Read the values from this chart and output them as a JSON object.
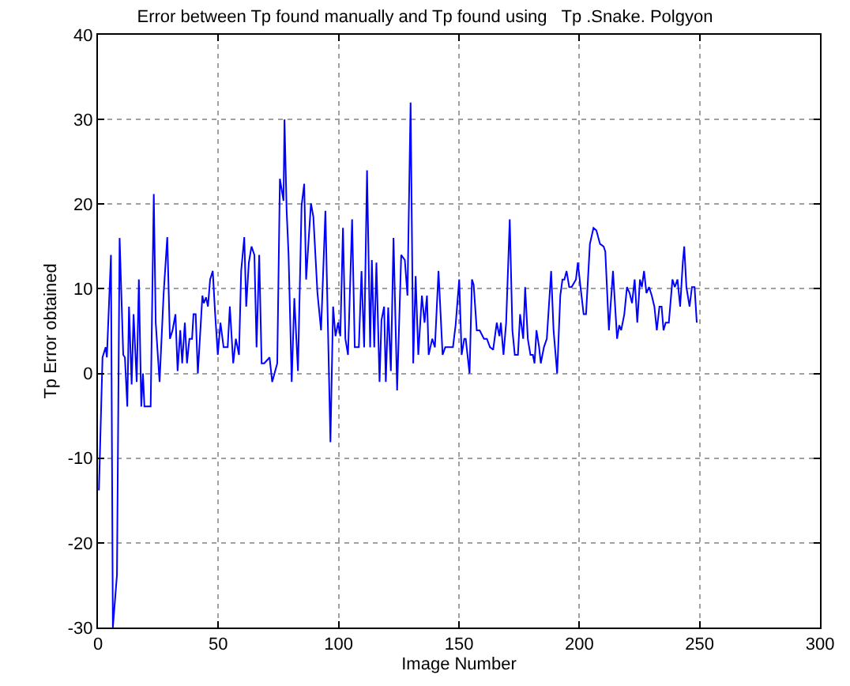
{
  "chart_data": {
    "type": "line",
    "title": "Error between Tp found manually and Tp found using   Tp .Snake. Polgyon",
    "xlabel": "Image Number",
    "ylabel": "Tp Error obtained",
    "x": [
      0.4,
      1.9,
      3.2,
      3.7,
      5.4,
      6.2,
      7.9,
      9,
      10.5,
      11.2,
      12.2,
      12.9,
      14,
      14.8,
      16.1,
      17,
      18,
      18.7,
      19.3,
      21.9,
      23.2,
      24,
      25.6,
      27.3,
      28.8,
      29.9,
      31,
      32.2,
      33.1,
      34.2,
      35,
      36.1,
      37,
      38,
      39.1,
      39.7,
      40.6,
      41.5,
      43.4,
      44,
      44.9,
      45.7,
      46.6,
      47.7,
      48.7,
      49.8,
      50.9,
      52.2,
      53.9,
      54.8,
      56.2,
      57.3,
      58.6,
      59.5,
      60.8,
      61.6,
      62.7,
      63.8,
      65,
      65.9,
      67,
      68,
      69.1,
      71.3,
      72.4,
      74.5,
      75.6,
      77.1,
      77.5,
      78.4,
      79.2,
      80.5,
      81.6,
      83.1,
      84.6,
      85.7,
      86.5,
      88.5,
      89.5,
      91.2,
      92.7,
      94.5,
      96.6,
      97.7,
      98.7,
      99.8,
      100.7,
      101.8,
      102.8,
      103.9,
      105.6,
      106.7,
      108.4,
      109.5,
      110.6,
      111.8,
      113.1,
      113.8,
      114.8,
      115.7,
      117,
      117.8,
      118.9,
      119.6,
      120.6,
      121.7,
      122.8,
      124.3,
      126,
      127.5,
      128.6,
      129.9,
      131,
      132,
      133.1,
      134.6,
      135.7,
      136.7,
      137.4,
      138.9,
      140,
      141.5,
      143.2,
      144.3,
      147.5,
      148.6,
      150.1,
      151.1,
      152.2,
      152.8,
      154.4,
      155.4,
      156.1,
      157.4,
      158.6,
      160.4,
      161.6,
      162.9,
      164.2,
      165.7,
      166.8,
      167.4,
      168.5,
      169.6,
      171.1,
      172.2,
      173.2,
      174.5,
      175.4,
      176.7,
      177.5,
      178.6,
      179.7,
      180.7,
      181.4,
      182.2,
      183.3,
      184,
      185.3,
      186.5,
      188.3,
      189.3,
      190.8,
      192.1,
      193,
      193.8,
      194.7,
      195.8,
      196.8,
      198.6,
      199.4,
      200.5,
      201.8,
      202.8,
      204.4,
      205.9,
      207.1,
      208.6,
      210.1,
      210.8,
      212.3,
      214,
      215.7,
      216.6,
      217.4,
      218.7,
      219.8,
      220.9,
      221.9,
      223,
      224.1,
      225.2,
      226,
      226.9,
      227.9,
      229,
      230.1,
      231.2,
      232.2,
      233.3,
      234.2,
      235,
      235.9,
      237.2,
      238.7,
      239.7,
      240.8,
      241.9,
      243,
      243.6,
      244.5,
      245.8,
      246.8,
      247.9,
      248.8
    ],
    "series": [
      {
        "color": "#0000ff",
        "values": [
          -13.8,
          1.9,
          3.1,
          1.9,
          14,
          -30,
          -23.8,
          16,
          2.2,
          1.9,
          -3.9,
          7.9,
          -1.3,
          7,
          -1,
          11.1,
          -3.9,
          0,
          -3.9,
          -3.9,
          21.2,
          6,
          -1,
          9.5,
          16.1,
          4.1,
          5.1,
          7,
          0.3,
          5.1,
          1.2,
          6,
          1.2,
          4.1,
          4.1,
          7,
          7,
          0,
          9.2,
          8.3,
          9,
          7.9,
          11.1,
          12.1,
          7,
          2.2,
          6,
          3.1,
          3.1,
          7.9,
          1.2,
          4.1,
          2.2,
          12.1,
          16.1,
          7.9,
          13.1,
          15,
          14,
          3.1,
          14,
          1.2,
          1.2,
          1.9,
          -1,
          1.2,
          23,
          20.4,
          30,
          19.2,
          14,
          -1,
          8.9,
          0.3,
          19.8,
          22.4,
          11.1,
          20.1,
          18.5,
          9.5,
          5.1,
          19.2,
          -8.1,
          7.9,
          4.4,
          6,
          4.4,
          17.2,
          4.1,
          2.2,
          18.2,
          3.1,
          3.1,
          12.1,
          3.1,
          24,
          3.1,
          13.4,
          3.1,
          13.1,
          -1,
          6.3,
          7.9,
          -1,
          7.8,
          0.3,
          16,
          -2,
          14,
          13.4,
          9.2,
          32,
          1.2,
          11.5,
          2.2,
          9.2,
          6,
          9.2,
          2.2,
          4.1,
          3.1,
          12.1,
          2.2,
          3.1,
          3.1,
          5.7,
          11.1,
          2.2,
          4.1,
          4.1,
          0,
          11.1,
          10.5,
          5.1,
          5.1,
          4.1,
          4.1,
          3.1,
          2.8,
          6,
          4.4,
          6,
          2.2,
          6,
          18.2,
          5.1,
          2.2,
          2.2,
          7,
          4.1,
          10.2,
          4.1,
          2.2,
          2.2,
          1.2,
          5.1,
          3.1,
          1.2,
          3.1,
          4.1,
          12.1,
          5.1,
          0,
          9.2,
          11.1,
          11.1,
          12.1,
          10.2,
          10.2,
          11.1,
          13.1,
          10.2,
          7,
          7,
          15.3,
          17.2,
          16.9,
          15.3,
          15,
          14.4,
          5.1,
          12.1,
          4.1,
          5.7,
          5.1,
          7,
          10.2,
          9.5,
          8.3,
          11.1,
          6,
          11.1,
          10.2,
          12.1,
          9.5,
          10.2,
          9.2,
          7.9,
          5.1,
          7.9,
          7.9,
          5.1,
          6,
          6,
          11.1,
          10.2,
          11.1,
          7.9,
          13.1,
          15,
          10.2,
          7.9,
          10.2,
          10.2,
          6
        ]
      }
    ],
    "xlim": [
      0,
      300
    ],
    "xticks": [
      0,
      50,
      100,
      150,
      200,
      250,
      300
    ],
    "ylim": [
      -30,
      40
    ],
    "yticks": [
      -30,
      -20,
      -10,
      0,
      10,
      20,
      30,
      40
    ],
    "grid": true,
    "marker": "none",
    "line_style": "solid"
  }
}
